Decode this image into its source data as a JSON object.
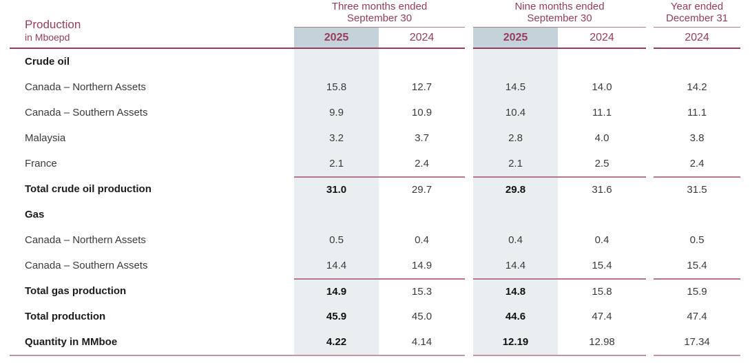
{
  "table": {
    "title": "Production",
    "subtitle": "in Mboepd",
    "column_groups": [
      {
        "title_line1": "Three months ended",
        "title_line2": "September 30",
        "years": [
          {
            "label": "2025",
            "highlight": true
          },
          {
            "label": "2024",
            "highlight": false
          }
        ]
      },
      {
        "title_line1": "Nine months ended",
        "title_line2": "September 30",
        "years": [
          {
            "label": "2025",
            "highlight": true
          },
          {
            "label": "2024",
            "highlight": false
          }
        ]
      },
      {
        "title_line1": "Year ended",
        "title_line2": "December 31",
        "years": [
          {
            "label": "2024",
            "highlight": false
          }
        ]
      }
    ],
    "rows": [
      {
        "label": "Crude oil",
        "type": "section",
        "values": [
          "",
          "",
          "",
          "",
          ""
        ]
      },
      {
        "label": "Canada – Northern Assets",
        "type": "data",
        "values": [
          "15.8",
          "12.7",
          "14.5",
          "14.0",
          "14.2"
        ]
      },
      {
        "label": "Canada – Southern Assets",
        "type": "data",
        "values": [
          "9.9",
          "10.9",
          "10.4",
          "11.1",
          "11.1"
        ]
      },
      {
        "label": "Malaysia",
        "type": "data",
        "values": [
          "3.2",
          "3.7",
          "2.8",
          "4.0",
          "3.8"
        ]
      },
      {
        "label": "France",
        "type": "data",
        "values": [
          "2.1",
          "2.4",
          "2.1",
          "2.5",
          "2.4"
        ]
      },
      {
        "label": "Total crude oil production",
        "type": "total",
        "values": [
          "31.0",
          "29.7",
          "29.8",
          "31.6",
          "31.5"
        ]
      },
      {
        "label": "Gas",
        "type": "section",
        "values": [
          "",
          "",
          "",
          "",
          ""
        ]
      },
      {
        "label": "Canada – Northern Assets",
        "type": "data",
        "values": [
          "0.5",
          "0.4",
          "0.4",
          "0.4",
          "0.5"
        ]
      },
      {
        "label": "Canada – Southern Assets",
        "type": "data",
        "values": [
          "14.4",
          "14.9",
          "14.4",
          "15.4",
          "15.4"
        ]
      },
      {
        "label": "Total gas production",
        "type": "total",
        "values": [
          "14.9",
          "15.3",
          "14.8",
          "15.8",
          "15.9"
        ]
      },
      {
        "label": "Total production",
        "type": "total-plain",
        "values": [
          "45.9",
          "45.0",
          "44.6",
          "47.4",
          "47.4"
        ]
      },
      {
        "label": "Quantity in MMboe",
        "type": "total-plain",
        "values": [
          "4.22",
          "4.14",
          "12.19",
          "12.98",
          "17.34"
        ]
      }
    ]
  },
  "colors": {
    "accent_maroon": "#993a5c",
    "highlight_header_bg": "#c4d3da",
    "highlight_column_bg": "#e9eef1",
    "bottom_rule": "#c492a4"
  }
}
